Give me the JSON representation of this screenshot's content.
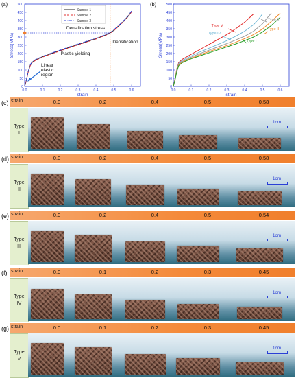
{
  "chart_data": [
    {
      "panel_label": "(a)",
      "type": "line",
      "xlabel": "strain",
      "ylabel": "Stress(MPa)",
      "xlim": [
        0,
        0.65
      ],
      "ylim": [
        0,
        500
      ],
      "xticks": [
        "0.0",
        "0.1",
        "0.2",
        "0.3",
        "0.4",
        "0.5",
        "0.6"
      ],
      "yticks": [
        "0",
        "50",
        "100",
        "150",
        "200",
        "250",
        "300",
        "350",
        "400",
        "450",
        "500"
      ],
      "legend_position": "top-center",
      "series": [
        {
          "name": "Sample 1",
          "color": "#222222",
          "dash": "solid",
          "x": [
            0,
            0.01,
            0.02,
            0.03,
            0.04,
            0.06,
            0.1,
            0.15,
            0.2,
            0.25,
            0.3,
            0.35,
            0.4,
            0.45,
            0.48,
            0.5,
            0.52,
            0.55,
            0.58,
            0.6
          ],
          "y": [
            0,
            40,
            90,
            125,
            145,
            160,
            180,
            200,
            218,
            237,
            255,
            272,
            290,
            310,
            325,
            340,
            360,
            390,
            425,
            455
          ]
        },
        {
          "name": "Sample 2",
          "color": "#e03030",
          "dash": "dashed",
          "x": [
            0,
            0.01,
            0.02,
            0.03,
            0.04,
            0.06,
            0.1,
            0.15,
            0.2,
            0.25,
            0.3,
            0.35,
            0.4,
            0.45,
            0.48,
            0.5,
            0.52,
            0.55,
            0.58,
            0.6
          ],
          "y": [
            0,
            38,
            88,
            123,
            143,
            158,
            178,
            198,
            216,
            235,
            253,
            270,
            288,
            308,
            323,
            338,
            358,
            388,
            422,
            452
          ]
        },
        {
          "name": "Sample 3",
          "color": "#2b3fd6",
          "dash": "dashdot",
          "x": [
            0,
            0.01,
            0.02,
            0.03,
            0.04,
            0.06,
            0.1,
            0.15,
            0.2,
            0.25,
            0.3,
            0.35,
            0.4,
            0.45,
            0.48,
            0.5,
            0.52,
            0.55,
            0.58,
            0.6
          ],
          "y": [
            0,
            42,
            92,
            128,
            148,
            163,
            183,
            203,
            221,
            240,
            258,
            275,
            293,
            313,
            328,
            343,
            363,
            393,
            428,
            458
          ]
        }
      ],
      "annotations": {
        "densification_stress": "Densification stress",
        "densification": "Densification",
        "plastic_yielding": "Plastic yielding",
        "linear_elastic": [
          "Linear",
          "elastic",
          "region"
        ]
      },
      "markers": {
        "vline_strains": [
          0.04,
          0.48
        ],
        "hline_stress": 325,
        "point_stress": 325
      }
    },
    {
      "panel_label": "(b)",
      "type": "line",
      "xlabel": "strain",
      "ylabel": "Stress(MPa)",
      "xlim": [
        0,
        0.65
      ],
      "ylim": [
        0,
        500
      ],
      "xticks": [
        "0.0",
        "0.1",
        "0.2",
        "0.3",
        "0.4",
        "0.5",
        "0.6"
      ],
      "yticks": [
        "0",
        "50",
        "100",
        "150",
        "200",
        "250",
        "300",
        "350",
        "400",
        "450",
        "500"
      ],
      "series": [
        {
          "name": "Type V",
          "color": "#e02424",
          "x": [
            0,
            0.01,
            0.02,
            0.03,
            0.05,
            0.1,
            0.15,
            0.2,
            0.25,
            0.3,
            0.35,
            0.4,
            0.43,
            0.45
          ],
          "y": [
            0,
            50,
            110,
            145,
            165,
            195,
            225,
            255,
            285,
            315,
            350,
            390,
            420,
            440
          ]
        },
        {
          "name": "Type IV",
          "color": "#6fb7d6",
          "x": [
            0,
            0.01,
            0.02,
            0.03,
            0.05,
            0.1,
            0.15,
            0.2,
            0.25,
            0.3,
            0.35,
            0.4,
            0.45,
            0.48,
            0.5
          ],
          "y": [
            0,
            48,
            105,
            140,
            158,
            185,
            210,
            232,
            255,
            278,
            305,
            335,
            375,
            410,
            440
          ]
        },
        {
          "name": "Type III",
          "color": "#9a9a9a",
          "x": [
            0,
            0.01,
            0.02,
            0.03,
            0.05,
            0.1,
            0.15,
            0.2,
            0.25,
            0.3,
            0.35,
            0.4,
            0.45,
            0.5,
            0.53,
            0.55
          ],
          "y": [
            0,
            46,
            100,
            135,
            152,
            178,
            200,
            220,
            240,
            260,
            282,
            305,
            335,
            380,
            420,
            445
          ]
        },
        {
          "name": "Type II",
          "color": "#f08a2a",
          "x": [
            0,
            0.01,
            0.02,
            0.03,
            0.05,
            0.1,
            0.15,
            0.2,
            0.25,
            0.3,
            0.35,
            0.4,
            0.45,
            0.5,
            0.55,
            0.58,
            0.6
          ],
          "y": [
            0,
            44,
            96,
            130,
            148,
            172,
            192,
            212,
            230,
            248,
            268,
            290,
            315,
            348,
            395,
            425,
            445
          ]
        },
        {
          "name": "Type I",
          "color": "#2aa02a",
          "x": [
            0,
            0.01,
            0.02,
            0.03,
            0.05,
            0.1,
            0.15,
            0.2,
            0.25,
            0.3,
            0.35,
            0.4,
            0.45,
            0.5,
            0.55,
            0.6
          ],
          "y": [
            0,
            42,
            92,
            126,
            144,
            168,
            186,
            204,
            222,
            240,
            258,
            278,
            300,
            330,
            370,
            420
          ]
        }
      ]
    }
  ],
  "strain_header_label": "strain",
  "scale_bar_label": "1cm",
  "rows": [
    {
      "letter": "(c)",
      "type_label": [
        "Type",
        "I"
      ],
      "strains": [
        "0.0",
        "0.2",
        "0.4",
        "0.5",
        "0.58"
      ]
    },
    {
      "letter": "(d)",
      "type_label": [
        "Type",
        "II"
      ],
      "strains": [
        "0.0",
        "0.2",
        "0.4",
        "0.5",
        "0.58"
      ]
    },
    {
      "letter": "(e)",
      "type_label": [
        "Type",
        "III"
      ],
      "strains": [
        "0.0",
        "0.2",
        "0.4",
        "0.5",
        "0.54"
      ]
    },
    {
      "letter": "(f)",
      "type_label": [
        "Type",
        "IV"
      ],
      "strains": [
        "0.0",
        "0.1",
        "0.2",
        "0.3",
        "0.45"
      ]
    },
    {
      "letter": "(g)",
      "type_label": [
        "Type",
        "V"
      ],
      "strains": [
        "0.0",
        "0.1",
        "0.2",
        "0.3",
        "0.45"
      ]
    }
  ]
}
